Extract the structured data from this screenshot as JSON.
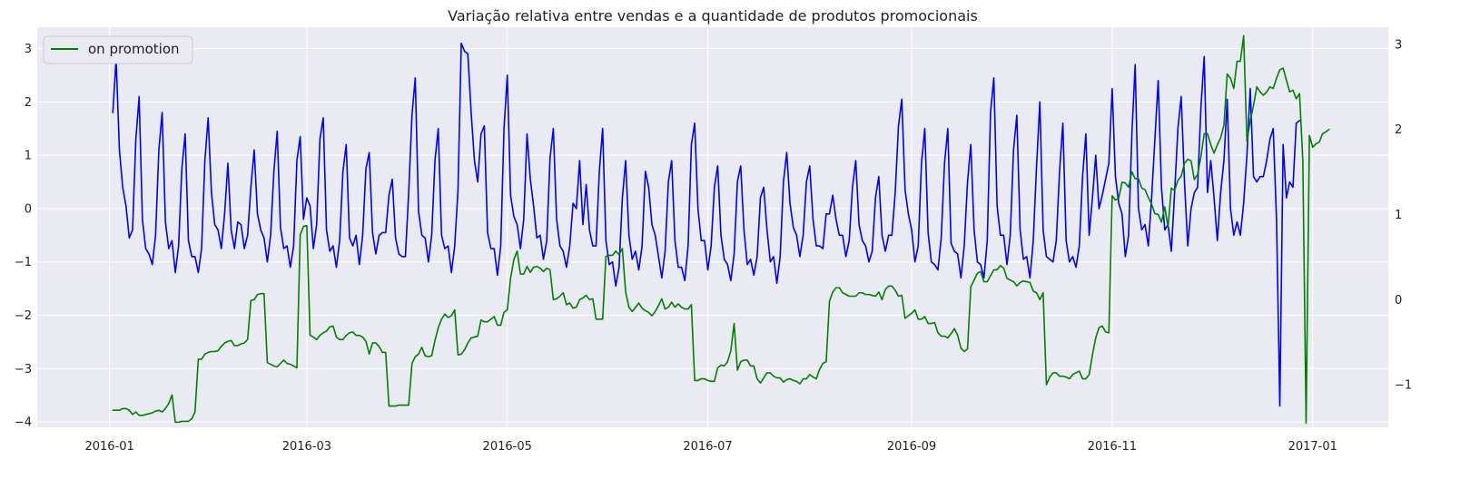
{
  "chart_data": {
    "type": "line",
    "title": "Variação relativa entre vendas e a quantidade de produtos promocionais",
    "xlabel": "",
    "ylabel_left": "",
    "ylabel_right": "",
    "grid": true,
    "legend": {
      "placement": "top-left",
      "entries": [
        "on promotion"
      ]
    },
    "x_start": "2016-01-02",
    "x_ticks": [
      "2016-01",
      "2016-03",
      "2016-05",
      "2016-07",
      "2016-09",
      "2016-11",
      "2017-01"
    ],
    "x_tick_dates": [
      "2016-01-01",
      "2016-03-01",
      "2016-05-01",
      "2016-07-01",
      "2016-09-01",
      "2016-11-01",
      "2017-01-01"
    ],
    "y_left": {
      "range": [
        -4.1,
        3.4
      ],
      "ticks": [
        -4,
        -3,
        -2,
        -1,
        0,
        1,
        2,
        3
      ]
    },
    "y_right": {
      "range": [
        -1.5,
        3.2
      ],
      "ticks": [
        -1,
        0,
        1,
        2,
        3
      ]
    },
    "series": [
      {
        "axis": "left",
        "color": "#0000ff",
        "values": [
          1.8,
          2.8,
          1.1,
          0.4,
          0.05,
          -0.55,
          -0.4,
          1.3,
          2.1,
          -0.2,
          -0.75,
          -0.85,
          -1.05,
          -0.5,
          1.1,
          1.8,
          -0.25,
          -0.75,
          -0.6,
          -1.2,
          -0.7,
          0.75,
          1.4,
          -0.6,
          -0.9,
          -0.9,
          -1.2,
          -0.75,
          0.9,
          1.7,
          0.3,
          -0.3,
          -0.4,
          -0.75,
          -0.1,
          0.85,
          -0.4,
          -0.75,
          -0.25,
          -0.3,
          -0.75,
          -0.5,
          0.4,
          1.1,
          -0.1,
          -0.4,
          -0.55,
          -1.0,
          -0.5,
          0.7,
          1.45,
          -0.35,
          -0.75,
          -0.7,
          -1.1,
          -0.7,
          0.9,
          1.35,
          -0.2,
          0.2,
          0.05,
          -0.75,
          -0.3,
          1.3,
          1.7,
          -0.4,
          -0.8,
          -0.7,
          -1.1,
          -0.6,
          0.7,
          1.2,
          -0.55,
          -0.7,
          -0.5,
          -1.05,
          -0.5,
          0.75,
          1.05,
          -0.45,
          -0.85,
          -0.5,
          -0.45,
          -0.45,
          0.25,
          0.55,
          -0.55,
          -0.85,
          -0.9,
          -0.9,
          0.3,
          1.75,
          2.45,
          -0.05,
          -0.5,
          -0.55,
          -1.0,
          -0.5,
          0.9,
          1.5,
          -0.5,
          -0.75,
          -0.7,
          -1.2,
          -0.7,
          0.35,
          3.1,
          2.95,
          2.9,
          1.8,
          0.9,
          0.5,
          1.4,
          1.55,
          -0.45,
          -0.75,
          -0.75,
          -1.25,
          -0.7,
          1.5,
          2.5,
          0.25,
          -0.15,
          -0.3,
          -0.75,
          -0.2,
          1.4,
          0.55,
          0.05,
          -0.55,
          -0.5,
          -0.95,
          -0.6,
          0.95,
          1.5,
          -0.2,
          -0.7,
          -0.8,
          -1.1,
          -0.7,
          0.1,
          0.0,
          0.9,
          -0.3,
          0.45,
          -0.4,
          -0.7,
          -0.7,
          0.7,
          1.5,
          -0.6,
          -1.05,
          -1.0,
          -1.45,
          -1.1,
          0.2,
          0.9,
          -0.5,
          -0.95,
          -0.8,
          -1.15,
          -0.7,
          0.7,
          0.4,
          -0.3,
          -0.5,
          -0.9,
          -1.3,
          -0.8,
          0.5,
          0.9,
          -0.6,
          -1.1,
          -1.1,
          -1.35,
          -0.7,
          1.2,
          1.6,
          0.0,
          -0.6,
          -0.6,
          -1.15,
          -0.7,
          0.4,
          0.8,
          -0.5,
          -0.95,
          -1.05,
          -1.35,
          -0.85,
          0.5,
          0.8,
          -0.4,
          -1.05,
          -0.95,
          -1.25,
          -0.9,
          0.2,
          0.4,
          -0.4,
          -1.0,
          -0.9,
          -1.4,
          -0.9,
          0.5,
          1.05,
          0.1,
          -0.35,
          -0.5,
          -0.9,
          -0.5,
          0.5,
          0.8,
          -0.2,
          -0.7,
          -0.7,
          -0.75,
          -0.1,
          -0.1,
          0.25,
          -0.2,
          -0.5,
          -0.5,
          -0.9,
          -0.6,
          0.4,
          0.9,
          -0.3,
          -0.6,
          -0.7,
          -1.0,
          -0.8,
          0.2,
          0.6,
          -0.5,
          -0.8,
          -0.5,
          -0.5,
          0.3,
          1.55,
          2.05,
          0.35,
          -0.1,
          -0.4,
          -1.0,
          -0.7,
          0.85,
          1.5,
          -0.45,
          -1.0,
          -1.05,
          -1.15,
          -0.55,
          0.85,
          1.5,
          -0.65,
          -0.8,
          -0.85,
          -1.3,
          -0.7,
          0.5,
          1.2,
          -0.4,
          -1.0,
          -1.05,
          -1.3,
          -0.6,
          1.8,
          2.45,
          0.05,
          -0.5,
          -0.5,
          -1.05,
          -0.5,
          1.1,
          1.75,
          -0.4,
          -0.95,
          -0.9,
          -1.3,
          -0.6,
          0.8,
          2.0,
          -0.4,
          -0.9,
          -0.95,
          -1.0,
          -0.6,
          0.7,
          1.6,
          -0.6,
          -1.0,
          -0.9,
          -1.1,
          -0.7,
          0.6,
          1.4,
          -0.5,
          0.2,
          1.0,
          0.0,
          0.25,
          0.55,
          0.85,
          2.25,
          0.6,
          0.1,
          -0.1,
          -0.9,
          -0.5,
          1.4,
          2.7,
          0.0,
          -0.4,
          -0.3,
          -0.7,
          0.2,
          1.3,
          2.4,
          0.4,
          -0.4,
          -0.3,
          -0.8,
          0.3,
          1.5,
          2.1,
          0.5,
          -0.7,
          0.0,
          0.3,
          0.4,
          1.9,
          2.85,
          0.3,
          0.9,
          0.2,
          -0.6,
          0.3,
          0.9,
          2.05,
          0.0,
          -0.5,
          -0.25,
          -0.5,
          0.1,
          1.0,
          2.25,
          0.6,
          0.5,
          0.6,
          0.6,
          0.9,
          1.3,
          1.5,
          -0.2,
          -3.7,
          1.2,
          0.2,
          0.5,
          0.4,
          1.6,
          1.65
        ]
      },
      {
        "name": "on promotion",
        "axis": "right",
        "color": "#008000",
        "values": [
          -1.3,
          -1.3,
          -1.3,
          -1.28,
          -1.28,
          -1.3,
          -1.35,
          -1.32,
          -1.36,
          -1.36,
          -1.35,
          -1.34,
          -1.33,
          -1.31,
          -1.3,
          -1.32,
          -1.28,
          -1.22,
          -1.12,
          -1.44,
          -1.44,
          -1.43,
          -1.43,
          -1.43,
          -1.4,
          -1.32,
          -0.7,
          -0.7,
          -0.64,
          -0.62,
          -0.61,
          -0.61,
          -0.6,
          -0.55,
          -0.51,
          -0.49,
          -0.48,
          -0.54,
          -0.54,
          -0.52,
          -0.51,
          -0.47,
          -0.01,
          0.0,
          0.06,
          0.07,
          0.07,
          -0.74,
          -0.76,
          -0.78,
          -0.79,
          -0.75,
          -0.71,
          -0.75,
          -0.76,
          -0.78,
          -0.8,
          0.76,
          0.86,
          0.87,
          -0.42,
          -0.44,
          -0.47,
          -0.42,
          -0.39,
          -0.37,
          -0.32,
          -0.31,
          -0.44,
          -0.47,
          -0.47,
          -0.42,
          -0.39,
          -0.38,
          -0.42,
          -0.42,
          -0.44,
          -0.49,
          -0.64,
          -0.51,
          -0.51,
          -0.55,
          -0.62,
          -0.62,
          -1.25,
          -1.25,
          -1.25,
          -1.24,
          -1.24,
          -1.24,
          -1.24,
          -0.75,
          -0.67,
          -0.64,
          -0.56,
          -0.66,
          -0.67,
          -0.66,
          -0.48,
          -0.33,
          -0.23,
          -0.17,
          -0.21,
          -0.19,
          -0.12,
          -0.65,
          -0.64,
          -0.59,
          -0.51,
          -0.45,
          -0.44,
          -0.43,
          -0.24,
          -0.26,
          -0.26,
          -0.23,
          -0.2,
          -0.3,
          -0.3,
          -0.15,
          -0.12,
          0.25,
          0.47,
          0.57,
          0.3,
          0.3,
          0.39,
          0.32,
          0.38,
          0.39,
          0.37,
          0.33,
          0.37,
          0.35,
          0.0,
          0.01,
          0.04,
          0.08,
          -0.06,
          -0.04,
          -0.1,
          -0.09,
          0.0,
          0.02,
          0.05,
          0.0,
          0.01,
          -0.23,
          -0.23,
          -0.23,
          0.51,
          0.52,
          0.52,
          0.57,
          0.53,
          0.6,
          0.09,
          -0.09,
          -0.14,
          -0.09,
          -0.04,
          -0.1,
          -0.13,
          -0.15,
          -0.19,
          -0.14,
          -0.07,
          0.01,
          -0.11,
          -0.09,
          -0.03,
          -0.09,
          -0.05,
          -0.09,
          -0.11,
          -0.11,
          -0.06,
          -0.95,
          -0.95,
          -0.93,
          -0.93,
          -0.95,
          -0.96,
          -0.96,
          -0.8,
          -0.77,
          -0.78,
          -0.73,
          -0.6,
          -0.28,
          -0.83,
          -0.73,
          -0.71,
          -0.71,
          -0.78,
          -0.78,
          -0.93,
          -0.98,
          -0.92,
          -0.86,
          -0.86,
          -0.9,
          -0.92,
          -0.92,
          -0.97,
          -0.94,
          -0.93,
          -0.95,
          -0.96,
          -0.99,
          -0.93,
          -0.93,
          -0.88,
          -0.91,
          -0.93,
          -0.82,
          -0.75,
          -0.73,
          -0.02,
          0.09,
          0.14,
          0.14,
          0.08,
          0.06,
          0.04,
          0.04,
          0.04,
          0.08,
          0.08,
          0.06,
          0.06,
          0.05,
          0.04,
          0.09,
          0.0,
          0.12,
          0.16,
          0.16,
          0.11,
          0.04,
          0.05,
          -0.22,
          -0.19,
          -0.16,
          -0.12,
          -0.23,
          -0.23,
          -0.2,
          -0.28,
          -0.28,
          -0.27,
          -0.39,
          -0.43,
          -0.43,
          -0.45,
          -0.4,
          -0.34,
          -0.42,
          -0.57,
          -0.61,
          -0.58,
          0.15,
          0.23,
          0.31,
          0.33,
          0.21,
          0.21,
          0.28,
          0.35,
          0.35,
          0.4,
          0.37,
          0.25,
          0.23,
          0.21,
          0.16,
          0.2,
          0.22,
          0.21,
          0.2,
          0.1,
          0.08,
          0.0,
          0.08,
          -1.0,
          -0.91,
          -0.86,
          -0.86,
          -0.9,
          -0.9,
          -0.91,
          -0.93,
          -0.88,
          -0.86,
          -0.84,
          -0.93,
          -0.93,
          -0.88,
          -0.65,
          -0.45,
          -0.33,
          -0.31,
          -0.38,
          -0.39,
          1.22,
          1.17,
          1.19,
          1.38,
          1.37,
          1.32,
          1.5,
          1.42,
          1.42,
          1.31,
          1.29,
          1.2,
          1.12,
          1.01,
          1.0,
          0.91,
          1.09,
          0.85,
          1.31,
          1.28,
          1.4,
          1.45,
          1.6,
          1.65,
          1.63,
          1.41,
          1.47,
          1.68,
          1.95,
          1.95,
          1.82,
          1.72,
          1.82,
          1.9,
          2.05,
          2.65,
          2.6,
          2.48,
          2.8,
          2.8,
          3.1,
          1.86,
          2.1,
          2.28,
          2.5,
          2.44,
          2.4,
          2.44,
          2.5,
          2.48,
          2.6,
          2.7,
          2.72,
          2.58,
          2.44,
          2.46,
          2.36,
          2.42,
          1.63,
          -1.45,
          1.93,
          1.79,
          1.83,
          1.85,
          1.95,
          1.97,
          2.0
        ]
      }
    ]
  }
}
